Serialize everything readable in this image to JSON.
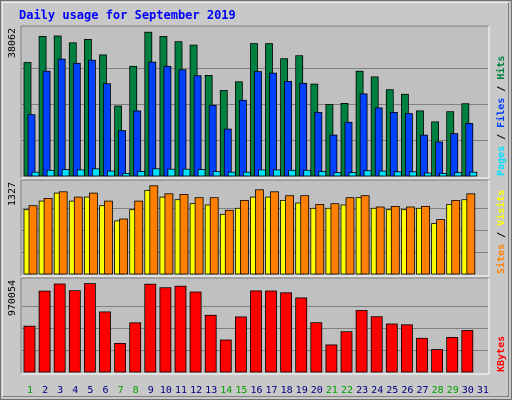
{
  "chart_data": {
    "title": "Daily usage for September 2019",
    "days": [
      "1",
      "2",
      "3",
      "4",
      "5",
      "6",
      "7",
      "8",
      "9",
      "10",
      "11",
      "12",
      "13",
      "14",
      "15",
      "16",
      "17",
      "18",
      "19",
      "20",
      "21",
      "22",
      "23",
      "24",
      "25",
      "26",
      "27",
      "28",
      "29",
      "30",
      "31"
    ],
    "weekend_days": [
      "1",
      "7",
      "8",
      "14",
      "15",
      "21",
      "22",
      "28",
      "29"
    ],
    "panels": [
      {
        "type": "bar",
        "max_label": "38062",
        "ymax": 38062,
        "series": [
          {
            "name": "Hits",
            "color": "#008040",
            "values": [
              30000,
              36900,
              37000,
              35200,
              36100,
              32000,
              18500,
              29000,
              38000,
              36900,
              35500,
              34600,
              26600,
              22600,
              24900,
              35000,
              35000,
              31000,
              31800,
              24300,
              18900,
              19200,
              27700,
              26200,
              22800,
              21600,
              17200,
              14300,
              17000,
              19100,
              null
            ]
          },
          {
            "name": "Files",
            "color": "#0040ff",
            "values": [
              16200,
              27700,
              30900,
              29800,
              30600,
              24400,
              12000,
              17200,
              30100,
              29000,
              28100,
              26500,
              18700,
              12400,
              20000,
              27600,
              27200,
              25000,
              24500,
              16800,
              10800,
              14200,
              21700,
              18000,
              16800,
              16500,
              10800,
              9000,
              11200,
              13900,
              null
            ]
          },
          {
            "name": "Pages",
            "color": "#00e0ff",
            "values": [
              1000,
              1500,
              1700,
              1600,
              1900,
              1300,
              700,
              1200,
              1900,
              1800,
              1800,
              1700,
              1200,
              1000,
              1000,
              1600,
              1600,
              1500,
              1500,
              1200,
              900,
              900,
              1400,
              1300,
              1100,
              1100,
              800,
              700,
              900,
              1000,
              null
            ]
          }
        ]
      },
      {
        "type": "bar",
        "max_label": "1327",
        "ymax": 1327,
        "series": [
          {
            "name": "Visits",
            "color": "#ffff00",
            "values": [
              970,
              1100,
              1220,
              1100,
              1160,
              1030,
              800,
              970,
              1260,
              1160,
              1120,
              1060,
              1040,
              900,
              990,
              1160,
              1160,
              1110,
              1070,
              990,
              990,
              1040,
              1150,
              990,
              970,
              970,
              990,
              760,
              1050,
              1120,
              null
            ]
          },
          {
            "name": "Sites",
            "color": "#ff8000",
            "values": [
              1030,
              1140,
              1240,
              1160,
              1220,
              1100,
              830,
              1100,
              1330,
              1210,
              1200,
              1150,
              1150,
              960,
              1110,
              1270,
              1240,
              1180,
              1180,
              1050,
              1060,
              1150,
              1180,
              1010,
              1020,
              1010,
              1020,
              820,
              1110,
              1210,
              null
            ]
          }
        ]
      },
      {
        "type": "bar",
        "max_label": "970054",
        "ymax": 970054,
        "series": [
          {
            "name": "KBytes",
            "color": "#ff0000",
            "values": [
              505000,
              892000,
              970000,
              896000,
              975000,
              663000,
              315000,
              542000,
              968000,
              929000,
              946000,
              882000,
              625000,
              353000,
              607000,
              894000,
              893000,
              873000,
              817000,
              544000,
              299000,
              444000,
              678000,
              610000,
              529000,
              520000,
              371000,
              248000,
              381000,
              457000,
              null
            ]
          }
        ]
      }
    ],
    "legend_right": [
      {
        "label": "Pages",
        "color": "#00e0ff"
      },
      {
        "label": "Files",
        "color": "#0040ff"
      },
      {
        "label": "Hits",
        "color": "#008040"
      },
      {
        "label": "Sites",
        "color": "#ff8000"
      },
      {
        "label": "Visits",
        "color": "#ffff00"
      },
      {
        "label": "KBytes",
        "color": "#ff0000"
      }
    ],
    "colors": {
      "title": "#0000ff",
      "weekend_label": "#00a000",
      "weekday_label": "#000080",
      "plot_bg": "#c0c0c0",
      "grid": "#808080"
    }
  }
}
